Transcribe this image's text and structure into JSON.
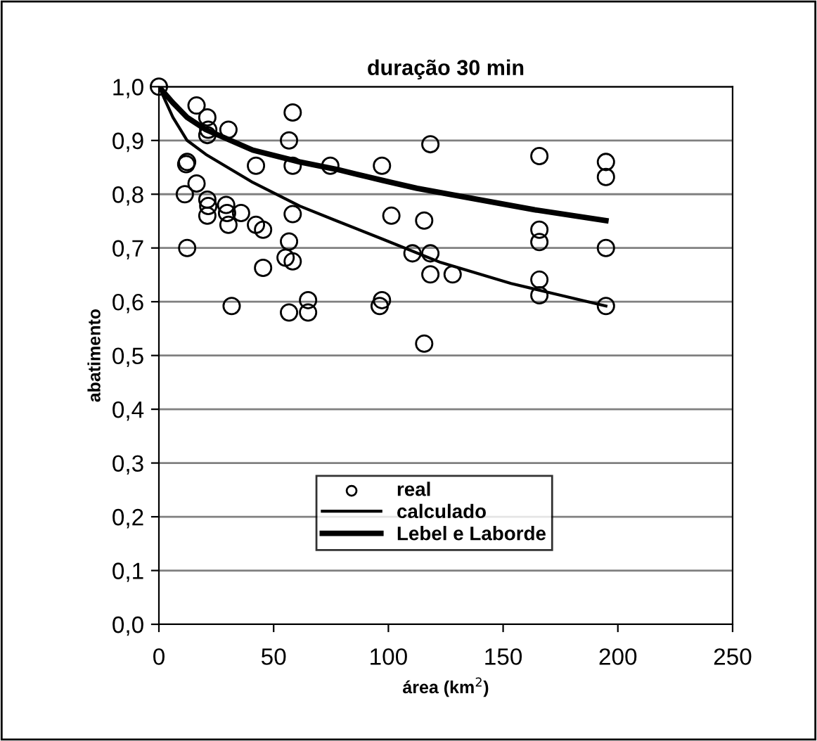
{
  "chart_data": {
    "type": "scatter",
    "title": "duração 30 min",
    "xlabel": "área (km$^{2}$)",
    "ylabel": "abatimento",
    "xlim": [
      0,
      250
    ],
    "xticks": [
      0,
      50,
      100,
      150,
      200,
      250
    ],
    "ylim": [
      0,
      1.0
    ],
    "yticks": [
      {
        "value": 0,
        "label": "0,0"
      },
      {
        "value": 0.1,
        "label": "0,1"
      },
      {
        "value": 0.2,
        "label": "0,2"
      },
      {
        "value": 0.3,
        "label": "0,3"
      },
      {
        "value": 0.4,
        "label": "0,4"
      },
      {
        "value": 0.5,
        "label": "0,5"
      },
      {
        "value": 0.6,
        "label": "0,6"
      },
      {
        "value": 0.7,
        "label": "0,7"
      },
      {
        "value": 0.8,
        "label": "0,8"
      },
      {
        "value": 0.9,
        "label": "0,9"
      },
      {
        "value": 1.0,
        "label": "1,0"
      }
    ],
    "grid": "y",
    "legend": "bottom",
    "series": [
      {
        "name": "real",
        "marker": "circle",
        "color": "#000000",
        "x": [
          0,
          16.4,
          21.1,
          21.5,
          21.1,
          30.3,
          58.3,
          56.7,
          58.3,
          42.3,
          11.9,
          12.3,
          16.4,
          11.3,
          21.1,
          21.5,
          21.1,
          29.3,
          29.7,
          30.3,
          35.8,
          42.3,
          45.4,
          58.3,
          12.3,
          56.7,
          55.2,
          58.3,
          45.4,
          31.7,
          56.7,
          65,
          65,
          74.7,
          97.2,
          118.3,
          165.8,
          194.8,
          194.8,
          101.3,
          115.6,
          165.8,
          165.8,
          110.5,
          118.3,
          194.8,
          118.3,
          128,
          165.8,
          165.8,
          194.8,
          97.2,
          96.2,
          115.6
        ],
        "values": [
          1.0,
          0.965,
          0.943,
          0.92,
          0.91,
          0.92,
          0.952,
          0.9,
          0.853,
          0.853,
          0.856,
          0.86,
          0.82,
          0.8,
          0.79,
          0.778,
          0.76,
          0.78,
          0.765,
          0.743,
          0.765,
          0.743,
          0.734,
          0.763,
          0.7,
          0.712,
          0.682,
          0.675,
          0.663,
          0.592,
          0.58,
          0.603,
          0.58,
          0.853,
          0.853,
          0.893,
          0.871,
          0.86,
          0.832,
          0.76,
          0.751,
          0.734,
          0.711,
          0.69,
          0.69,
          0.7,
          0.651,
          0.651,
          0.641,
          0.612,
          0.592,
          0.603,
          0.592,
          0.522
        ]
      },
      {
        "name": "calculado",
        "type": "line",
        "marker": "none",
        "line_style": "solid",
        "color": "#000000",
        "x": [
          0,
          6.1,
          12.3,
          20.5,
          40.9,
          61.4,
          77.7,
          97.2,
          122.8,
          153.5,
          194.8
        ],
        "values": [
          1.0,
          0.943,
          0.9,
          0.874,
          0.822,
          0.778,
          0.75,
          0.717,
          0.673,
          0.634,
          0.592
        ]
      },
      {
        "name": "Lebel e Laborde",
        "type": "line",
        "marker": "none",
        "line_style": "solid",
        "color": "#000000",
        "x": [
          0,
          6.1,
          12.3,
          20.5,
          40.9,
          61.4,
          77.7,
          97.2,
          112.5,
          133,
          163.7,
          194.8
        ],
        "values": [
          1.0,
          0.97,
          0.943,
          0.92,
          0.882,
          0.86,
          0.846,
          0.826,
          0.811,
          0.795,
          0.771,
          0.751
        ]
      }
    ]
  }
}
